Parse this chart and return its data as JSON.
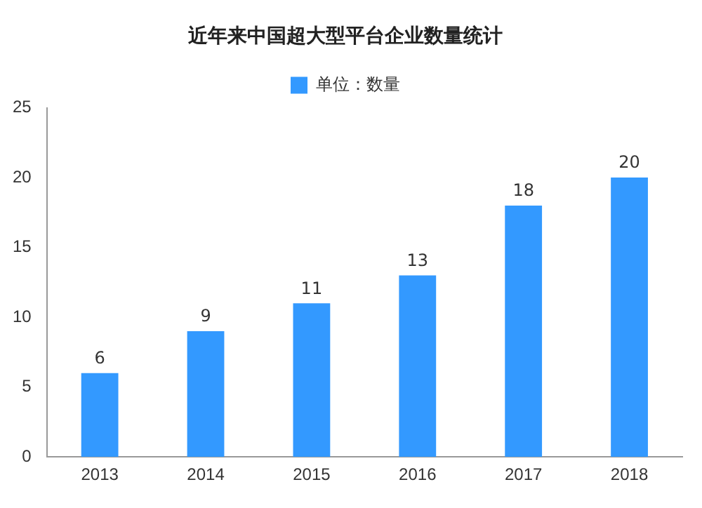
{
  "chart_data": {
    "type": "bar",
    "title": "近年来中国超大型平台企业数量统计",
    "categories": [
      "2013",
      "2014",
      "2015",
      "2016",
      "2017",
      "2018"
    ],
    "series": [
      {
        "name": "单位：数量",
        "color": "#3399ff",
        "values": [
          6,
          9,
          11,
          13,
          18,
          20
        ]
      }
    ],
    "ylim": [
      0,
      25
    ],
    "yticks": [
      0,
      5,
      10,
      15,
      20,
      25
    ],
    "grid": false,
    "legend": "top",
    "data_labels": true
  }
}
